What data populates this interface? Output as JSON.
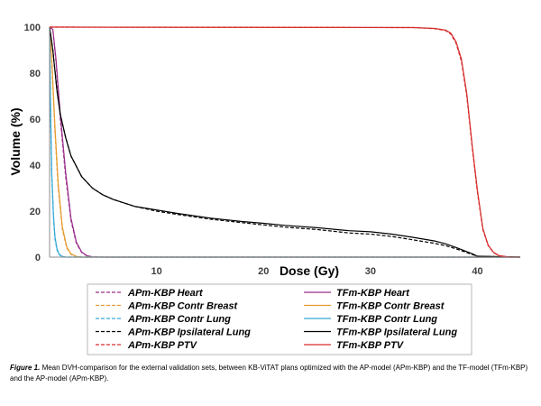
{
  "chart_data": {
    "type": "line",
    "title": "",
    "xlabel": "Dose (Gy)",
    "ylabel": "Volume (%)",
    "xlim": [
      0,
      44
    ],
    "ylim": [
      0,
      100
    ],
    "x_ticks": [
      "10",
      "20",
      "30",
      "40"
    ],
    "y_ticks": [
      "0",
      "20",
      "40",
      "60",
      "80",
      "100"
    ],
    "grid": false,
    "legend_position": "bottom",
    "series": [
      {
        "name": "APm-KBP Heart",
        "color": "#9b2d8a",
        "dash": "dashed",
        "x": [
          0,
          0.3,
          0.6,
          1.0,
          1.5,
          2.0,
          2.5,
          3.0,
          3.5,
          4.0,
          5.0,
          44
        ],
        "y": [
          100,
          99,
          85,
          60,
          35,
          16,
          6,
          2,
          0.5,
          0.1,
          0,
          0
        ]
      },
      {
        "name": "TFm-KBP Heart",
        "color": "#9b2d8a",
        "dash": "solid",
        "x": [
          0,
          0.3,
          0.6,
          1.0,
          1.5,
          2.0,
          2.5,
          3.0,
          3.5,
          4.0,
          5.0,
          44
        ],
        "y": [
          100,
          99,
          86,
          62,
          37,
          17,
          6.5,
          2.2,
          0.6,
          0.1,
          0,
          0
        ]
      },
      {
        "name": "APm-KBP Contr Breast",
        "color": "#e69b2e",
        "dash": "dashed",
        "x": [
          0,
          0.2,
          0.5,
          0.8,
          1.2,
          1.6,
          2.0,
          2.5,
          3.0,
          44
        ],
        "y": [
          100,
          85,
          55,
          30,
          12,
          4,
          1.2,
          0.2,
          0,
          0
        ]
      },
      {
        "name": "TFm-KBP Contr Breast",
        "color": "#e69b2e",
        "dash": "solid",
        "x": [
          0,
          0.2,
          0.5,
          0.8,
          1.2,
          1.6,
          2.0,
          2.5,
          3.0,
          44
        ],
        "y": [
          100,
          86,
          57,
          32,
          13,
          4.5,
          1.4,
          0.3,
          0,
          0
        ]
      },
      {
        "name": "APm-KBP Contr Lung",
        "color": "#35a9d6",
        "dash": "dashed",
        "x": [
          0,
          0.1,
          0.2,
          0.35,
          0.5,
          0.7,
          0.9,
          1.2,
          1.5,
          44
        ],
        "y": [
          100,
          60,
          35,
          18,
          8,
          3,
          1,
          0.2,
          0,
          0
        ]
      },
      {
        "name": "TFm-KBP Contr Lung",
        "color": "#35a9d6",
        "dash": "solid",
        "x": [
          0,
          0.1,
          0.2,
          0.35,
          0.5,
          0.7,
          0.9,
          1.2,
          1.5,
          44
        ],
        "y": [
          100,
          62,
          37,
          19,
          9,
          3.5,
          1.2,
          0.3,
          0,
          0
        ]
      },
      {
        "name": "APm-KBP Ipsilateral Lung",
        "color": "#000000",
        "dash": "dashed",
        "x": [
          0,
          0.3,
          0.7,
          1,
          1.5,
          2,
          3,
          4,
          5,
          6,
          8,
          10,
          12,
          15,
          18,
          20,
          22,
          25,
          28,
          30,
          32,
          34,
          36,
          37,
          38,
          39,
          39.6,
          40,
          44
        ],
        "y": [
          100,
          90,
          72,
          62,
          52,
          44,
          35,
          30,
          27,
          25,
          22,
          20,
          18.5,
          16.5,
          15,
          14,
          13,
          12,
          10.5,
          10,
          9,
          7.5,
          6,
          5,
          3.6,
          2,
          1,
          0.3,
          0
        ]
      },
      {
        "name": "TFm-KBP Ipsilateral Lung",
        "color": "#000000",
        "dash": "solid",
        "x": [
          0,
          0.3,
          0.7,
          1,
          1.5,
          2,
          3,
          4,
          5,
          6,
          8,
          10,
          12,
          15,
          18,
          20,
          22,
          25,
          28,
          30,
          32,
          34,
          36,
          37,
          38,
          39,
          39.6,
          40,
          44
        ],
        "y": [
          100,
          90,
          72,
          62,
          52,
          44,
          35,
          30,
          27,
          25,
          22,
          20.5,
          19,
          17,
          15.5,
          14.7,
          13.8,
          12.8,
          11.5,
          11,
          10,
          8.6,
          7,
          5.8,
          4.2,
          2.4,
          1.3,
          0.4,
          0
        ]
      },
      {
        "name": "APm-KBP PTV",
        "color": "#d62c2c",
        "dash": "dashed",
        "x": [
          0,
          34,
          36,
          37,
          37.5,
          38,
          38.5,
          39,
          39.5,
          40,
          40.5,
          41,
          41.5,
          42,
          43,
          44
        ],
        "y": [
          100,
          99.8,
          99.3,
          98.5,
          97,
          93,
          85,
          70,
          48,
          28,
          12,
          5,
          2,
          0.6,
          0,
          0
        ]
      },
      {
        "name": "TFm-KBP PTV",
        "color": "#d62c2c",
        "dash": "solid",
        "x": [
          0,
          34,
          36,
          37,
          37.5,
          38,
          38.5,
          39,
          39.5,
          40,
          40.5,
          41,
          41.5,
          42,
          43,
          44
        ],
        "y": [
          100,
          99.8,
          99.4,
          98.7,
          97.4,
          93.6,
          86,
          71,
          49,
          29,
          12.5,
          5.2,
          2.1,
          0.7,
          0,
          0
        ]
      }
    ]
  },
  "caption": {
    "label": "Figure 1.",
    "text": " Mean DVH-comparison for the external validation sets, between KB-ViTAT plans optimized with the AP-model (APm-KBP) and the TF-model (TFm-KBP) and the AP-model (APm-KBP)."
  }
}
